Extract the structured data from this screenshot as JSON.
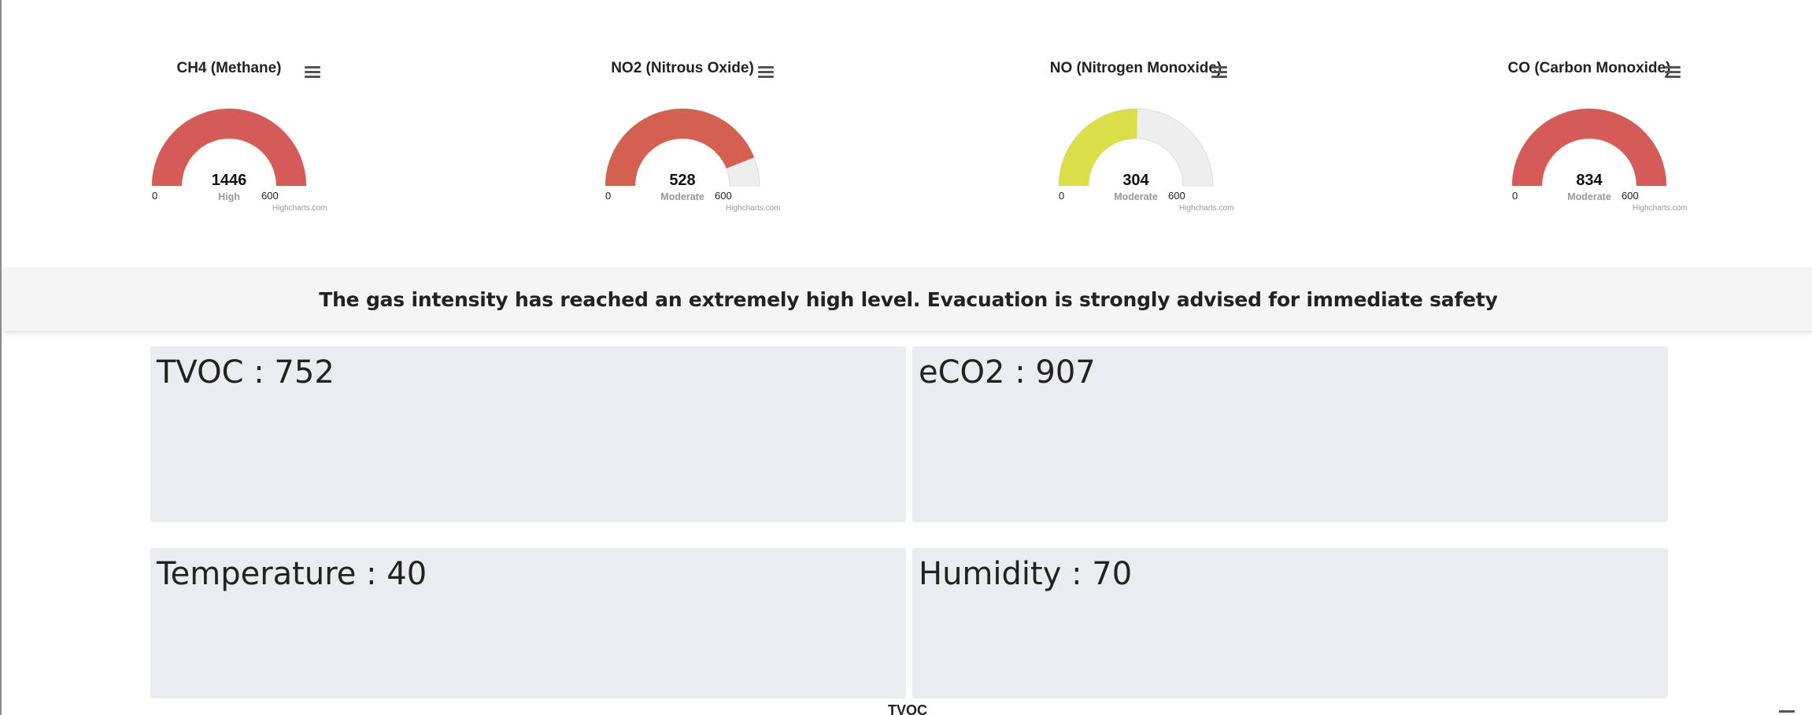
{
  "gauges": [
    {
      "title": "CH4 (Methane)",
      "value": "1446",
      "level": "High",
      "min": "0",
      "max": "600",
      "credits": "Highcharts.com",
      "fill_fraction": 1.0,
      "fill_color": "#d45b57"
    },
    {
      "title": "NO2 (Nitrous Oxide)",
      "value": "528",
      "level": "Moderate",
      "min": "0",
      "max": "600",
      "credits": "Highcharts.com",
      "fill_fraction": 0.88,
      "fill_color": "#d4614f"
    },
    {
      "title": "NO (Nitrogen Monoxide)",
      "value": "304",
      "level": "Moderate",
      "min": "0",
      "max": "600",
      "credits": "Highcharts.com",
      "fill_fraction": 0.5067,
      "fill_color": "#dadf4a"
    },
    {
      "title": "CO (Carbon Monoxide)",
      "value": "834",
      "level": "Moderate",
      "min": "0",
      "max": "600",
      "credits": "Highcharts.com",
      "fill_fraction": 1.0,
      "fill_color": "#d45b57"
    }
  ],
  "gauge_track_color": "#eeeeee",
  "menu_icon": "hamburger-menu-icon",
  "alert": {
    "message": "The gas intensity has reached an extremely high level. Evacuation is strongly advised for immediate safety"
  },
  "metrics": {
    "tvoc": "TVOC : 752",
    "eco2": "eCO2 : 907",
    "temperature": "Temperature : 40",
    "humidity": "Humidity : 70"
  },
  "bottom_chart_title": "TVOC"
}
